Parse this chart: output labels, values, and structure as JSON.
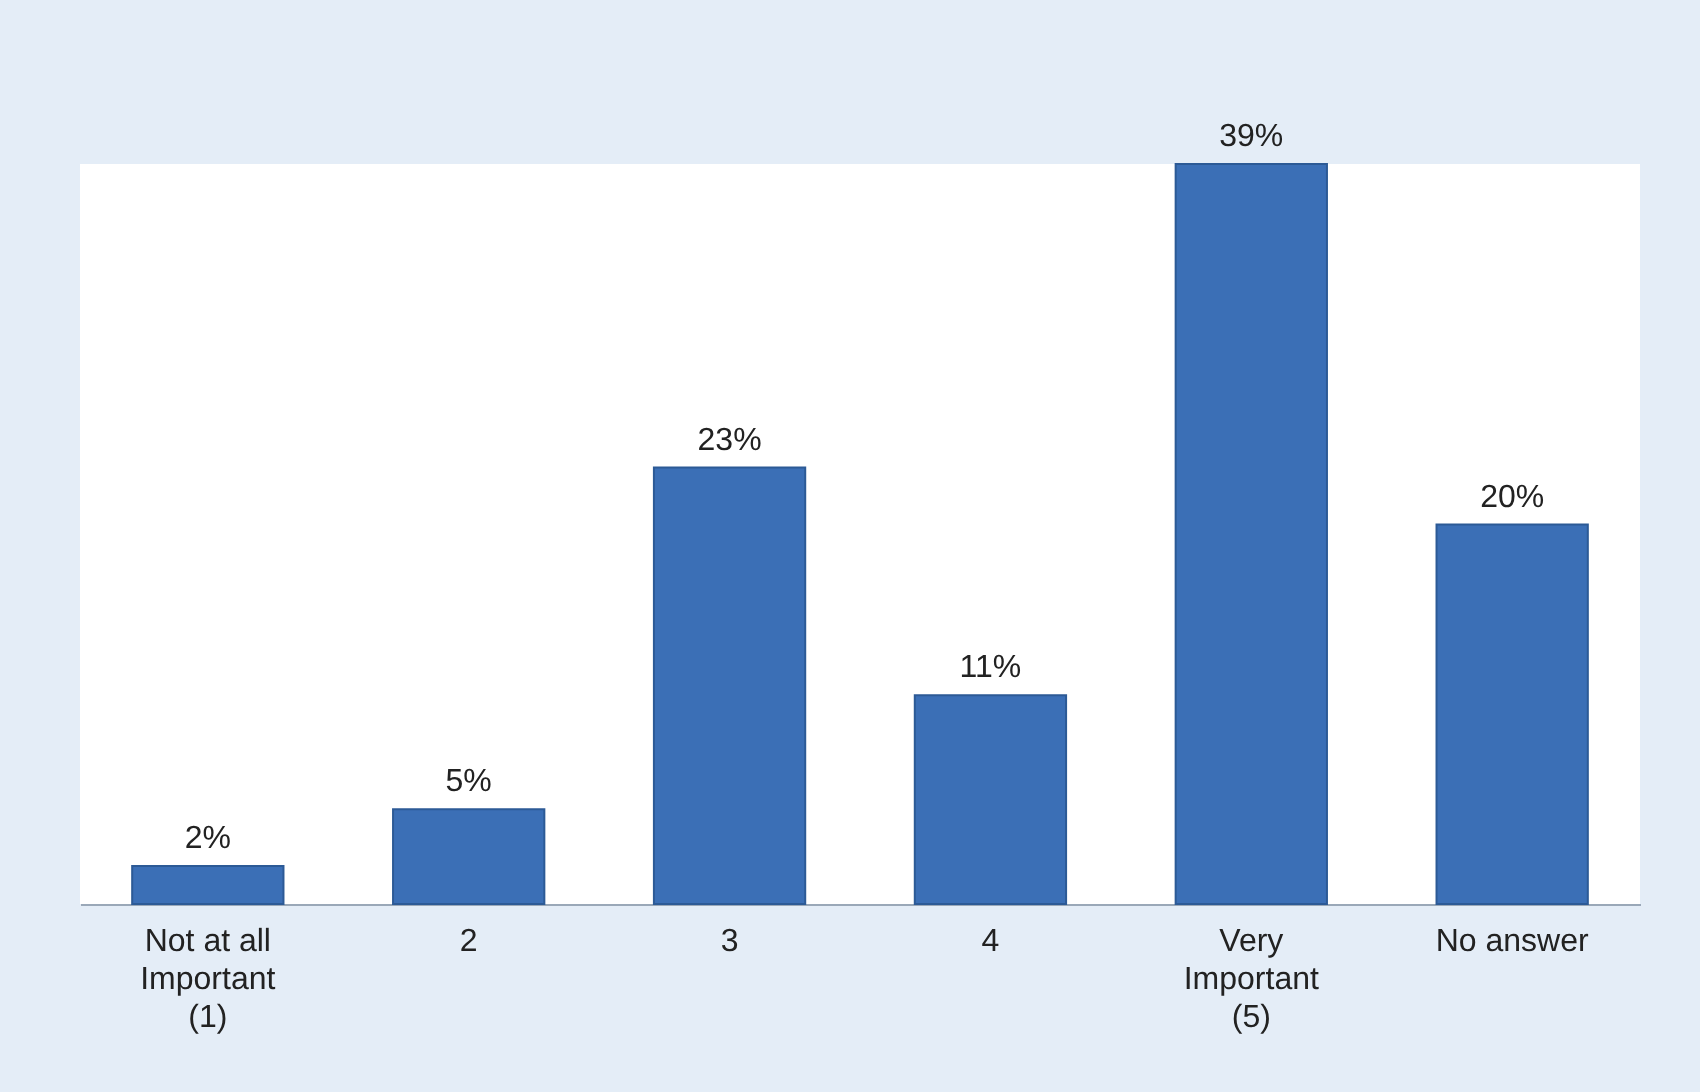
{
  "chart_data": {
    "type": "bar",
    "categories": [
      "Not at all\nImportant\n(1)",
      "2",
      "3",
      "4",
      "Very\nImportant\n(5)",
      "No answer"
    ],
    "values": [
      2,
      5,
      23,
      11,
      39,
      20
    ],
    "value_labels": [
      "2%",
      "5%",
      "23%",
      "11%",
      "39%",
      "20%"
    ],
    "color": "#3b6fb6",
    "grid": false
  }
}
